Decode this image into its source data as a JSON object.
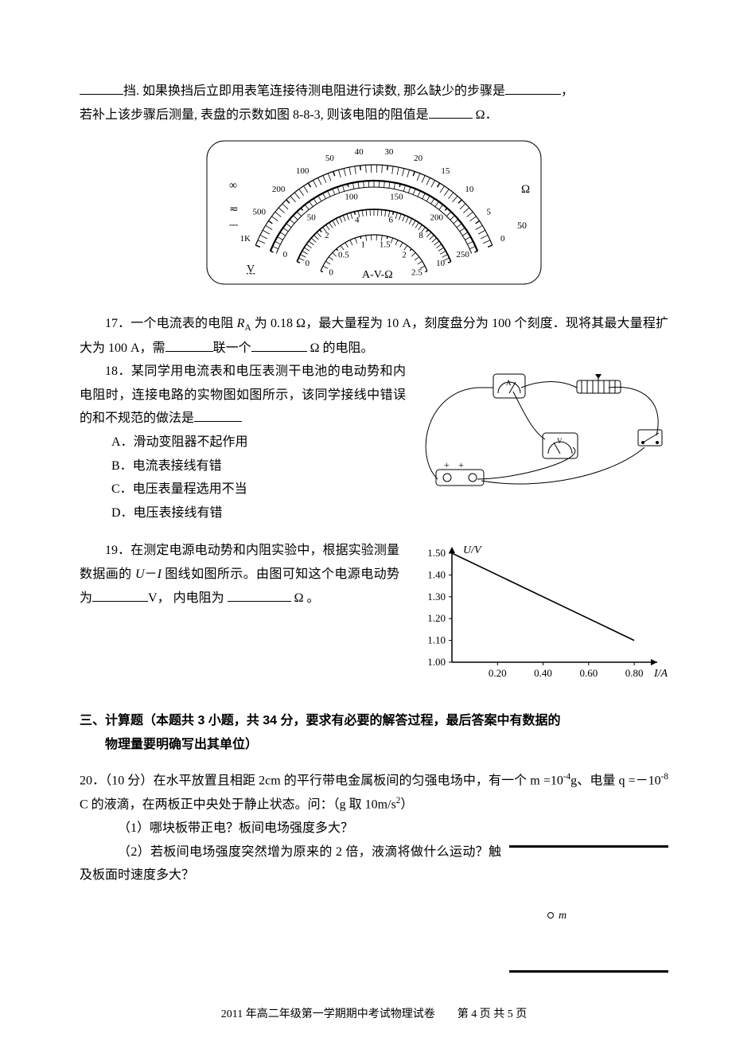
{
  "q16": {
    "line1_pre": "",
    "line1_mid1": "挡. 如果换挡后立即用表笔连接待测电阻进行读数, 那么缺少的步骤是",
    "line1_end": "，",
    "line2_a": "若补上该步骤后测量, 表盘的示数如图 8-8-3, 则该电阻的阻值是",
    "line2_b": " Ω．"
  },
  "meter": {
    "ohm_labels": [
      "1K",
      "500",
      "200",
      "100",
      "50",
      "40",
      "30",
      "20",
      "15",
      "10",
      "5",
      "0"
    ],
    "dc_labels": [
      "0",
      "50",
      "100",
      "150",
      "200",
      "250"
    ],
    "mid_labels": [
      "0",
      "2",
      "4",
      "6",
      "8",
      "10"
    ],
    "inner_labels": [
      "0",
      "0.5",
      "1",
      "1.5",
      "2",
      "2.5"
    ],
    "left_sym": "∞",
    "ac": "≂",
    "dc": "⎓",
    "v_mark": "V̰",
    "center": "A-V-Ω",
    "right_ohm": "Ω",
    "sub50": "50"
  },
  "q17": {
    "pre": "17．一个电流表的电阻 ",
    "ra": "R",
    "ra_sub": "A",
    "mid1": " 为 0.18 Ω，最大量程为 10 A，刻度盘分为 100 个刻度．现将其最大量程扩大为 100 A，需",
    "mid2": "联一个",
    "end": " Ω 的电阻。"
  },
  "q18": {
    "line1": "18．某同学用电流表和电压表测干电池的电动势和内电阻时，连接电路的实物图如图所示，该同学接线中错误的和不规范的做法是",
    "opts": {
      "A": "A．滑动变阻器不起作用",
      "B": "B．电流表接线有错",
      "C": "C．电压表量程选用不当",
      "D": "D．电压表接线有错"
    }
  },
  "q19": {
    "text_a": "19．在测定电源电动势和内阻实验中，根据实验测量数据画的 ",
    "u": "U",
    "dash": "－",
    "i": "I",
    "text_b": " 图线如图所示。由图可知这个电源电动势为",
    "text_c": "V， 内电阻为",
    "text_d": " Ω 。",
    "chart": {
      "ylabel": "U/V",
      "xlabel": "I/A",
      "yticks": [
        "1.00",
        "1.10",
        "1.20",
        "1.30",
        "1.40",
        "1.50"
      ],
      "xticks": [
        "0.20",
        "0.40",
        "0.60",
        "0.80"
      ],
      "line": {
        "x1": 0,
        "y1": 1.5,
        "x2": 0.8,
        "y2": 1.1
      },
      "axis_color": "#000000",
      "tick_font": 13
    }
  },
  "section3": {
    "title": "三、计算题（本题共 3 小题，共 34 分，要求有必要的解答过程，最后答案中有数据的",
    "title2": "物理量要明确写出其单位）"
  },
  "q20": {
    "line1_a": "20．（10 分）在水平放置且相距 2cm 的平行带电金属板间的匀强电场中，有一个 m =10",
    "exp1": "-4",
    "line1_b": "g、电量 q =－10",
    "exp2": "-8",
    "line1_c": " C 的液滴，在两板正中央处于静止状态。问：（g 取 10m/s",
    "exp3": "2",
    "line1_d": "）",
    "p1": "（1）哪块板带正电？板间电场强度多大？",
    "p2": "（2）若板间电场强度突然增为原来的 2 倍，液滴将做什么运动？触及板面时速度多大？",
    "drop_label": "m"
  },
  "footer": {
    "text": "2011 年高二年级第一学期期中考试物理试卷　　第 4 页 共 5 页"
  }
}
